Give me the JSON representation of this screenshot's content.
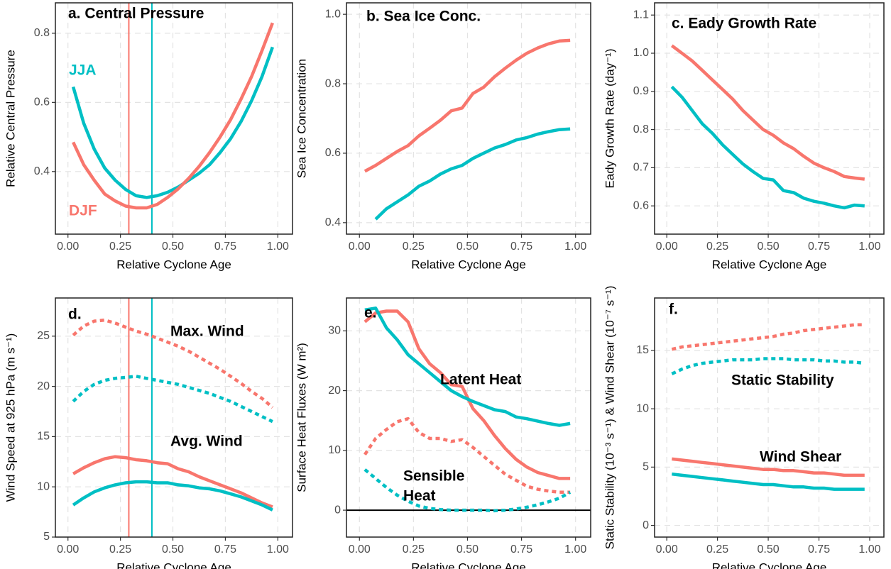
{
  "chart_data": [
    {
      "type": "line",
      "title": "a. Central Pressure",
      "xlabel": "Relative Cyclone Age",
      "ylabel": "Relative Central Pressure",
      "x": [
        0.025,
        0.075,
        0.125,
        0.175,
        0.225,
        0.275,
        0.325,
        0.375,
        0.425,
        0.475,
        0.525,
        0.575,
        0.625,
        0.675,
        0.725,
        0.775,
        0.825,
        0.875,
        0.925,
        0.975
      ],
      "xlim": [
        -0.06,
        1.07
      ],
      "xticks": [
        {
          "value": 0,
          "label": "0.00"
        },
        0.25,
        {
          "value": 0.5,
          "label": "0.50"
        },
        0.75,
        {
          "value": 1,
          "label": "1.00"
        }
      ],
      "ylim": [
        0.219,
        0.888
      ],
      "yticks": [
        0.4,
        0.6,
        0.8
      ],
      "grid": true,
      "series": [
        {
          "color": "#00BFC4",
          "style": "solid",
          "values": [
            0.645,
            0.54,
            0.465,
            0.41,
            0.375,
            0.348,
            0.33,
            0.325,
            0.33,
            0.34,
            0.355,
            0.375,
            0.395,
            0.42,
            0.455,
            0.495,
            0.545,
            0.605,
            0.675,
            0.76
          ]
        },
        {
          "color": "#F8766D",
          "style": "solid",
          "values": [
            0.485,
            0.42,
            0.375,
            0.335,
            0.315,
            0.3,
            0.295,
            0.295,
            0.305,
            0.325,
            0.35,
            0.38,
            0.415,
            0.455,
            0.5,
            0.55,
            0.61,
            0.675,
            0.75,
            0.83
          ]
        }
      ],
      "vlines": [
        {
          "value": 0.29,
          "color": "#F8766D"
        },
        {
          "value": 0.4,
          "color": "#00BFC4"
        }
      ],
      "annotations": [
        {
          "text": "JJA",
          "color": "#00BFC4"
        },
        {
          "text": "DJF",
          "color": "#F8766D"
        }
      ]
    },
    {
      "type": "line",
      "title": "b. Sea Ice Conc.",
      "xlabel": "Relative Cyclone Age",
      "ylabel": "Sea Ice Concentration",
      "x": [
        0.025,
        0.075,
        0.125,
        0.175,
        0.225,
        0.275,
        0.325,
        0.375,
        0.425,
        0.475,
        0.525,
        0.575,
        0.625,
        0.675,
        0.725,
        0.775,
        0.825,
        0.875,
        0.925,
        0.975
      ],
      "xlim": [
        -0.06,
        1.07
      ],
      "xticks": [
        {
          "value": 0,
          "label": "0.00"
        },
        0.25,
        {
          "value": 0.5,
          "label": "0.50"
        },
        0.75,
        {
          "value": 1,
          "label": "1.00"
        }
      ],
      "ylim": [
        0.367,
        1.033
      ],
      "yticks": [
        0.4,
        0.6,
        0.8,
        {
          "value": 1,
          "label": "1.0"
        }
      ],
      "grid": true,
      "series": [
        {
          "color": "#F8766D",
          "style": "solid",
          "values": [
            0.548,
            0.565,
            0.585,
            0.605,
            0.622,
            0.65,
            0.672,
            0.695,
            0.722,
            0.73,
            0.772,
            0.79,
            0.82,
            0.845,
            0.868,
            0.888,
            0.903,
            0.915,
            0.923,
            0.925
          ]
        },
        {
          "color": "#00BFC4",
          "style": "solid",
          "values": [
            null,
            0.41,
            0.44,
            0.46,
            0.48,
            0.505,
            0.52,
            0.54,
            0.555,
            0.565,
            0.585,
            0.6,
            0.615,
            0.625,
            0.638,
            0.645,
            0.655,
            0.662,
            0.668,
            0.67
          ]
        }
      ]
    },
    {
      "type": "line",
      "title": "c. Eady Growth Rate",
      "xlabel": "Relative Cyclone Age",
      "ylabel": "Eady Growth Rate (day⁻¹)",
      "x": [
        0.025,
        0.075,
        0.125,
        0.175,
        0.225,
        0.275,
        0.325,
        0.375,
        0.425,
        0.475,
        0.525,
        0.575,
        0.625,
        0.675,
        0.725,
        0.775,
        0.825,
        0.875,
        0.925,
        0.975
      ],
      "xlim": [
        -0.06,
        1.07
      ],
      "xticks": [
        {
          "value": 0,
          "label": "0.00"
        },
        0.25,
        {
          "value": 0.5,
          "label": "0.50"
        },
        0.75,
        {
          "value": 1,
          "label": "1.00"
        }
      ],
      "ylim": [
        0.526,
        1.132
      ],
      "yticks": [
        0.6,
        0.7,
        0.8,
        0.9,
        {
          "value": 1,
          "label": "1.0"
        },
        1.1
      ],
      "grid": true,
      "series": [
        {
          "color": "#F8766D",
          "style": "solid",
          "values": [
            1.02,
            1.0,
            0.98,
            0.955,
            0.93,
            0.905,
            0.88,
            0.85,
            0.825,
            0.8,
            0.785,
            0.765,
            0.75,
            0.73,
            0.712,
            0.7,
            0.69,
            0.677,
            0.673,
            0.67
          ]
        },
        {
          "color": "#00BFC4",
          "style": "solid",
          "values": [
            0.912,
            0.885,
            0.85,
            0.815,
            0.79,
            0.76,
            0.735,
            0.71,
            0.69,
            0.672,
            0.668,
            0.64,
            0.635,
            0.62,
            0.612,
            0.607,
            0.6,
            0.595,
            0.602,
            0.6
          ]
        }
      ]
    },
    {
      "type": "line",
      "title": "d.",
      "xlabel": "Relative Cyclone Age",
      "ylabel": "Wind Speed at 925 hPa (m s⁻¹)",
      "x": [
        0.025,
        0.075,
        0.125,
        0.175,
        0.225,
        0.275,
        0.325,
        0.375,
        0.425,
        0.475,
        0.525,
        0.575,
        0.625,
        0.675,
        0.725,
        0.775,
        0.825,
        0.875,
        0.925,
        0.975
      ],
      "xlim": [
        -0.06,
        1.07
      ],
      "xticks": [
        {
          "value": 0,
          "label": "0.00"
        },
        0.25,
        {
          "value": 0.5,
          "label": "0.50"
        },
        0.75,
        {
          "value": 1,
          "label": "1.00"
        }
      ],
      "ylim": [
        5,
        28.8
      ],
      "yticks": [
        5,
        10,
        15,
        20,
        25
      ],
      "grid": true,
      "series": [
        {
          "color": "#F8766D",
          "style": "dotted",
          "values": [
            25.1,
            26,
            26.5,
            26.6,
            26.3,
            25.9,
            25.5,
            25.2,
            24.8,
            24.4,
            24,
            23.5,
            22.9,
            22.3,
            21.7,
            21,
            20.3,
            19.5,
            18.8,
            17.9
          ]
        },
        {
          "color": "#00BFC4",
          "style": "dotted",
          "values": [
            18.5,
            19.5,
            20.2,
            20.6,
            20.8,
            20.9,
            21,
            20.8,
            20.6,
            20.4,
            20.2,
            19.9,
            19.6,
            19.3,
            18.9,
            18.5,
            18,
            17.5,
            17,
            16.5
          ]
        },
        {
          "color": "#F8766D",
          "style": "solid",
          "values": [
            11.3,
            11.9,
            12.4,
            12.8,
            13,
            12.9,
            12.7,
            12.6,
            12.4,
            12.3,
            11.8,
            11.5,
            11,
            10.6,
            10.2,
            9.8,
            9.4,
            8.9,
            8.4,
            8
          ]
        },
        {
          "color": "#00BFC4",
          "style": "solid",
          "values": [
            8.2,
            8.9,
            9.5,
            9.9,
            10.2,
            10.4,
            10.5,
            10.5,
            10.4,
            10.4,
            10.2,
            10.1,
            9.9,
            9.8,
            9.6,
            9.3,
            9,
            8.6,
            8.2,
            7.7
          ]
        }
      ],
      "vlines": [
        {
          "value": 0.29,
          "color": "#F8766D"
        },
        {
          "value": 0.4,
          "color": "#00BFC4"
        }
      ],
      "annotations": [
        {
          "text": "Max. Wind",
          "color": "#000000"
        },
        {
          "text": "Avg. Wind",
          "color": "#000000"
        }
      ]
    },
    {
      "type": "line",
      "title": "e.",
      "xlabel": "Relative Cyclone Age",
      "ylabel": "Surface Heat Fluxes (W m²)",
      "x": [
        0.025,
        0.075,
        0.125,
        0.175,
        0.225,
        0.275,
        0.325,
        0.375,
        0.425,
        0.475,
        0.525,
        0.575,
        0.625,
        0.675,
        0.725,
        0.775,
        0.825,
        0.875,
        0.925,
        0.975
      ],
      "xlim": [
        -0.06,
        1.07
      ],
      "xticks": [
        {
          "value": 0,
          "label": "0.00"
        },
        0.25,
        {
          "value": 0.5,
          "label": "0.50"
        },
        0.75,
        {
          "value": 1,
          "label": "1.00"
        }
      ],
      "ylim": [
        -4.5,
        35.5
      ],
      "yticks": [
        0,
        10,
        20,
        30
      ],
      "grid": true,
      "hline": 0,
      "series": [
        {
          "color": "#F8766D",
          "style": "solid",
          "values": [
            31.5,
            33,
            33.3,
            33.3,
            31.5,
            27,
            24.5,
            23,
            21,
            20.7,
            17,
            15,
            12.5,
            10.3,
            8.5,
            7.2,
            6.3,
            5.8,
            5.3,
            5.3
          ]
        },
        {
          "color": "#00BFC4",
          "style": "solid",
          "values": [
            33.5,
            33.8,
            30.5,
            28.5,
            26,
            24.5,
            23,
            21.5,
            20,
            19,
            18.2,
            17.5,
            16.8,
            16.5,
            15.6,
            15.3,
            14.9,
            14.5,
            14.2,
            14.5
          ]
        },
        {
          "color": "#F8766D",
          "style": "dotted",
          "values": [
            9.3,
            12,
            13.5,
            14.8,
            15.3,
            13,
            12,
            12,
            11.5,
            11.8,
            10.5,
            9,
            7.5,
            6,
            5,
            4,
            3.5,
            3.2,
            3,
            3
          ]
        },
        {
          "color": "#00BFC4",
          "style": "dotted",
          "values": [
            6.8,
            5.3,
            3.8,
            2.5,
            1.5,
            0.7,
            0.3,
            0.1,
            0,
            0,
            0,
            0,
            -0.1,
            0,
            0.2,
            0.5,
            0.9,
            1.4,
            2,
            3
          ]
        }
      ],
      "annotations": [
        {
          "text": "Latent Heat",
          "color": "#000000"
        },
        {
          "text": "Sensible",
          "color": "#000000"
        },
        {
          "text": "Heat",
          "color": "#000000"
        }
      ]
    },
    {
      "type": "line",
      "title": "f.",
      "xlabel": "Relative Cyclone Age",
      "ylabel": "Static Stability (10⁻³ s⁻¹) & Wind Shear (10⁻⁷ s⁻¹)",
      "x": [
        0.025,
        0.075,
        0.125,
        0.175,
        0.225,
        0.275,
        0.325,
        0.375,
        0.425,
        0.475,
        0.525,
        0.575,
        0.625,
        0.675,
        0.725,
        0.775,
        0.825,
        0.875,
        0.925,
        0.975
      ],
      "xlim": [
        -0.06,
        1.07
      ],
      "xticks": [
        {
          "value": 0,
          "label": "0.00"
        },
        0.25,
        {
          "value": 0.5,
          "label": "0.50"
        },
        0.75,
        {
          "value": 1,
          "label": "1.00"
        }
      ],
      "ylim": [
        -1,
        19.5
      ],
      "yticks": [
        0,
        5,
        10,
        15
      ],
      "grid": true,
      "series": [
        {
          "color": "#F8766D",
          "style": "dotted",
          "values": [
            15.1,
            15.3,
            15.4,
            15.5,
            15.6,
            15.7,
            15.8,
            15.9,
            16,
            16.1,
            16.2,
            16.4,
            16.5,
            16.7,
            16.8,
            16.9,
            17,
            17.1,
            17.2,
            17.2
          ]
        },
        {
          "color": "#00BFC4",
          "style": "dotted",
          "values": [
            13,
            13.4,
            13.7,
            13.9,
            14,
            14.1,
            14.2,
            14.2,
            14.2,
            14.3,
            14.3,
            14.3,
            14.2,
            14.2,
            14.2,
            14.1,
            14.1,
            14,
            14,
            13.9
          ]
        },
        {
          "color": "#F8766D",
          "style": "solid",
          "values": [
            5.7,
            5.6,
            5.5,
            5.4,
            5.3,
            5.2,
            5.1,
            5,
            4.9,
            4.8,
            4.8,
            4.7,
            4.7,
            4.6,
            4.5,
            4.5,
            4.4,
            4.3,
            4.3,
            4.3
          ]
        },
        {
          "color": "#00BFC4",
          "style": "solid",
          "values": [
            4.4,
            4.3,
            4.2,
            4.1,
            4,
            3.9,
            3.8,
            3.7,
            3.6,
            3.5,
            3.5,
            3.4,
            3.3,
            3.3,
            3.2,
            3.2,
            3.1,
            3.1,
            3.1,
            3.1
          ]
        }
      ],
      "annotations": [
        {
          "text": "Static Stability",
          "color": "#000000"
        },
        {
          "text": "Wind Shear",
          "color": "#000000"
        }
      ]
    }
  ]
}
